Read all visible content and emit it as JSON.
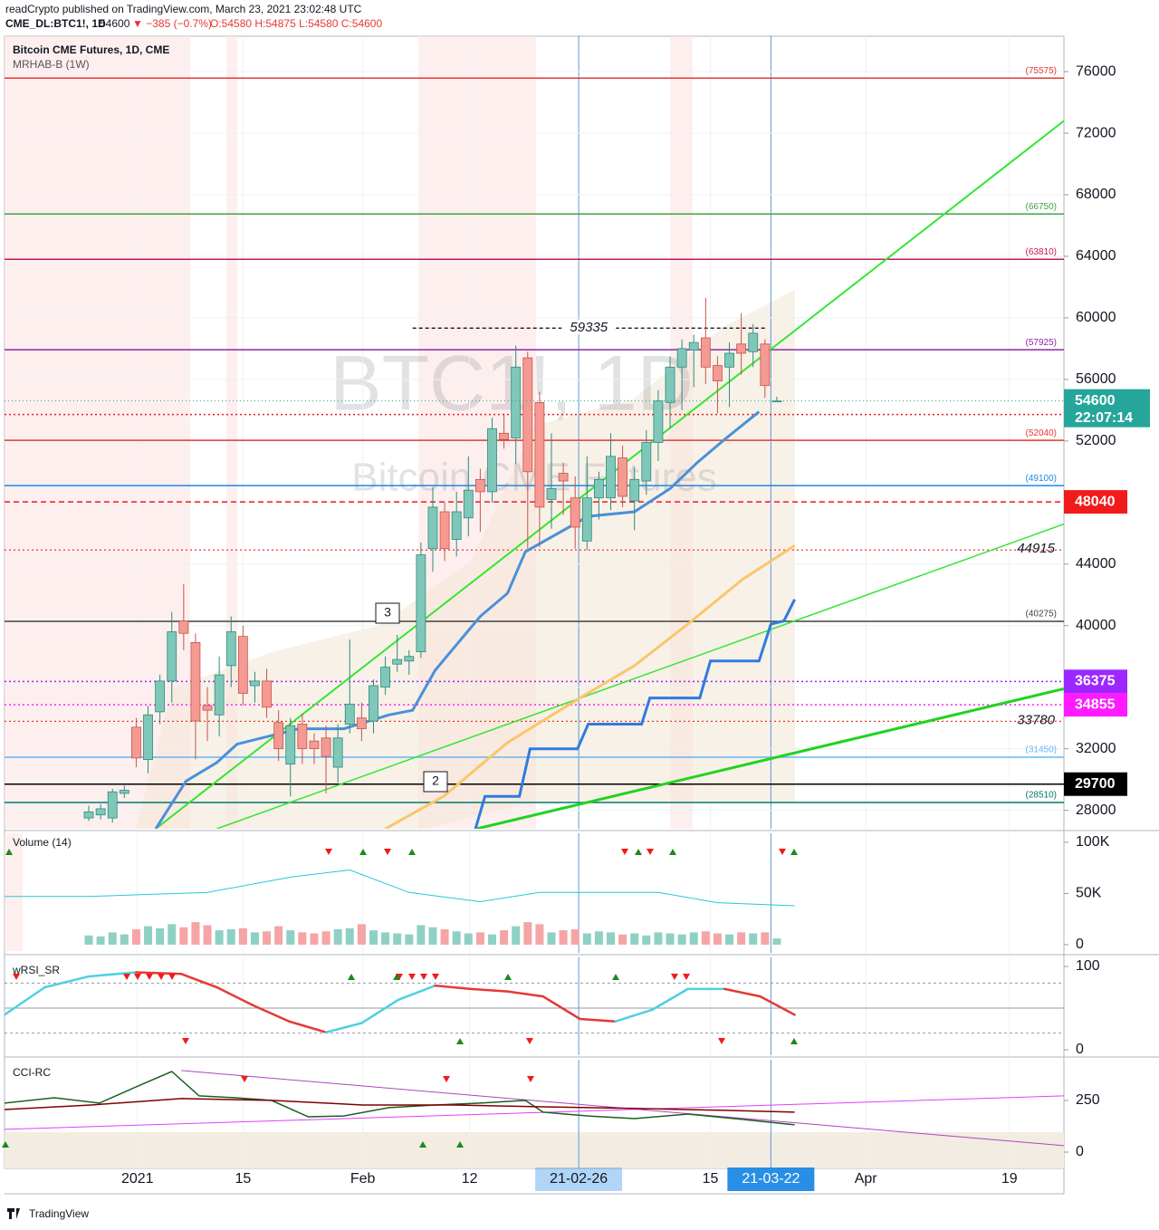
{
  "header": {
    "publisher": "readCrypto published on TradingView.com, March 23, 2021 23:02:48 UTC",
    "symbol": "CME_DL:BTC1!, 1D",
    "last": "54600",
    "change": "▼ −385 (−0.7%)",
    "ohlc": "O:54580 H:54875 L:54580 C:54600"
  },
  "footer": {
    "brand": "TradingView"
  },
  "chart_data": [
    {
      "type": "candlestick",
      "title": "Bitcoin CME Futures, 1D, CME",
      "subtitle": "MRHAB-B (1W)",
      "watermark": [
        "BTC1!, 1D",
        "Bitcoin CME Futures"
      ],
      "up_color": "#7fc8b9",
      "down_color": "#f49a93",
      "open": [
        27500,
        27700,
        27500,
        29100,
        33400,
        31300,
        34400,
        36400,
        40300,
        38900,
        34800,
        34200,
        37400,
        39300,
        36100,
        36400,
        33700,
        31000,
        33600,
        32500,
        32700,
        30800,
        33600,
        34000,
        33800,
        36000,
        37500,
        37700,
        38300,
        45000,
        47400,
        45600,
        47000,
        49500,
        48700,
        52500,
        52200,
        57400,
        54500,
        48200,
        49900,
        48300,
        45500,
        48300,
        48300,
        50900,
        48100,
        49400,
        51900,
        54500,
        56800,
        57900,
        58700,
        56900,
        56800,
        58300,
        57800,
        58300,
        54580
      ],
      "high": [
        28300,
        28400,
        29400,
        29600,
        34000,
        34800,
        36800,
        40900,
        42700,
        39500,
        36000,
        38000,
        40600,
        40000,
        37000,
        37200,
        34500,
        34000,
        34300,
        33000,
        33500,
        33600,
        39100,
        35000,
        36500,
        38000,
        39400,
        38400,
        45400,
        49000,
        48000,
        48700,
        51000,
        50200,
        53500,
        53800,
        58200,
        57800,
        55200,
        52500,
        50600,
        49700,
        51000,
        50000,
        52500,
        51700,
        50300,
        52700,
        55300,
        57500,
        58600,
        58900,
        61300,
        57500,
        58400,
        60300,
        59600,
        58600,
        54875
      ],
      "low": [
        27300,
        27400,
        27200,
        28800,
        30800,
        30400,
        33600,
        35000,
        38400,
        31300,
        32500,
        32800,
        36000,
        34800,
        35000,
        34000,
        31200,
        28900,
        31000,
        31000,
        29100,
        29800,
        33000,
        32500,
        33000,
        35500,
        37000,
        36800,
        37900,
        43500,
        44200,
        44500,
        45800,
        46100,
        48000,
        51500,
        50500,
        45000,
        45100,
        46300,
        47200,
        45000,
        44900,
        46900,
        47500,
        47700,
        46200,
        48500,
        50700,
        52800,
        54000,
        55500,
        55700,
        53800,
        54200,
        56300,
        56800,
        54800,
        54580
      ],
      "close": [
        27900,
        28100,
        29200,
        29300,
        31400,
        34200,
        36400,
        39600,
        39500,
        33800,
        34500,
        36800,
        39600,
        35600,
        36400,
        34700,
        32000,
        33500,
        32000,
        32000,
        31500,
        32700,
        34900,
        33300,
        36100,
        37300,
        37800,
        38000,
        44600,
        47700,
        45000,
        47400,
        48800,
        48700,
        52800,
        52100,
        56800,
        50000,
        47700,
        48900,
        49400,
        46400,
        48300,
        49500,
        51000,
        48400,
        49500,
        51900,
        54600,
        56800,
        58000,
        58400,
        56800,
        55900,
        57700,
        57700,
        59000,
        55600,
        54600
      ],
      "xlim": [
        -7.1,
        82.2
      ],
      "xticks": [
        {
          "value": 4.1,
          "label": "2021"
        },
        {
          "value": 13,
          "label": "15"
        },
        {
          "value": 23.1,
          "label": "Feb"
        },
        {
          "value": 32.1,
          "label": "12"
        },
        {
          "value": 41.3,
          "label": "21-02-26",
          "highlight": true
        },
        {
          "value": 52.4,
          "label": "15"
        },
        {
          "value": 57.5,
          "label": "21-03-22",
          "highlight": true
        },
        {
          "value": 65.5,
          "label": "Apr"
        },
        {
          "value": 77.6,
          "label": "19"
        }
      ],
      "ylim": [
        26800,
        78300
      ],
      "yticks": [
        28000,
        32000,
        36000,
        40000,
        44000,
        48000,
        52000,
        56000,
        60000,
        64000,
        68000,
        72000,
        76000
      ],
      "grid": true,
      "levels": [
        {
          "value": 75575,
          "label": "(75575)",
          "color": "#e53935"
        },
        {
          "value": 66750,
          "label": "(66750)",
          "color": "#43a047"
        },
        {
          "value": 63810,
          "label": "(63810)",
          "color": "#c2185b"
        },
        {
          "value": 57925,
          "label": "(57925)",
          "color": "#8e24aa"
        },
        {
          "value": 52040,
          "label": "(52040)",
          "color": "#e53935"
        },
        {
          "value": 49100,
          "label": "(49100)",
          "color": "#1e88e5"
        },
        {
          "value": 40275,
          "label": "(40275)",
          "color": "#424242"
        },
        {
          "value": 31450,
          "label": "(31450)",
          "color": "#64b5f6"
        },
        {
          "value": 28510,
          "label": "(28510)",
          "color": "#00796b"
        }
      ],
      "price_marks": [
        {
          "value": 53720,
          "color": "#f21a1a",
          "dash": "2 3"
        },
        {
          "value": 48040,
          "color": "#f21a1a",
          "dash": "6 4"
        },
        {
          "value": 36375,
          "color": "#9c27ff",
          "dash": "2 3"
        },
        {
          "value": 34855,
          "color": "#ff1aff",
          "dash": "2 3"
        },
        {
          "value": 29700,
          "color": "#000000",
          "dash": "none"
        }
      ],
      "text_levels": [
        {
          "value": 59335,
          "color": "#000000",
          "dash": "4 3",
          "x": [
            27.3,
            57
          ]
        },
        {
          "value": 44915,
          "color": "#e53935",
          "dash": "2 3"
        },
        {
          "value": 33780,
          "color": "#e53935",
          "dash": "2 3"
        }
      ],
      "last_price": {
        "value": 54600,
        "countdown": "22:07:14",
        "color": "#26a69a"
      },
      "annotations": [
        "3",
        "2"
      ],
      "lines": [
        {
          "color": "#33e633",
          "width": 2,
          "x": [
            5.65,
            82.2
          ],
          "values": [
            26800,
            72800
          ]
        },
        {
          "color": "#33e633",
          "width": 1.5,
          "x": [
            10.8,
            82.2
          ],
          "values": [
            26800,
            46600
          ]
        },
        {
          "color": "#1ed41e",
          "width": 3,
          "x": [
            32.7,
            82.2
          ],
          "values": [
            26800,
            35900
          ]
        },
        {
          "color": "#f9c66b",
          "width": 3,
          "x": [
            25,
            29.9,
            35.3,
            41.4,
            46,
            50.5,
            55.1,
            59.5
          ],
          "values": [
            26800,
            28900,
            32400,
            35300,
            37400,
            40100,
            43000,
            45200
          ]
        },
        {
          "color": "#4a90d9",
          "width": 3,
          "x": [
            5.65,
            8.2,
            10.8,
            12.5,
            17.7,
            21.5,
            25.3,
            27.3,
            29.2,
            33,
            35.3,
            36.8,
            39.1,
            42.1,
            46,
            49,
            51.3,
            53.6,
            56.5
          ],
          "values": [
            26800,
            29900,
            31100,
            32300,
            33300,
            33300,
            34200,
            34500,
            37100,
            40600,
            42100,
            44800,
            45800,
            47100,
            47400,
            48900,
            50600,
            52100,
            53900
          ]
        },
        {
          "color": "#2f7be0",
          "width": 3,
          "x": [
            32.6,
            33.4,
            36.3,
            37.2,
            41.2,
            42.1,
            46.6,
            47.3,
            51.5,
            52.4,
            56.5,
            57.5,
            58.6,
            59.5
          ],
          "values": [
            26800,
            28900,
            28900,
            32000,
            32000,
            33600,
            33600,
            35300,
            35300,
            37700,
            37700,
            40100,
            40300,
            41700
          ]
        }
      ]
    },
    {
      "type": "bar",
      "title": "Volume (14)",
      "up_color": "#8fd0c4",
      "down_color": "#f5a5a5",
      "values": [
        9000,
        8000,
        12000,
        10000,
        15000,
        18000,
        16000,
        20000,
        17000,
        22000,
        19000,
        14000,
        15000,
        16000,
        12000,
        13000,
        18000,
        14000,
        12000,
        11000,
        13000,
        15000,
        16000,
        20000,
        14000,
        12000,
        11000,
        10000,
        19000,
        17000,
        15000,
        13000,
        11000,
        12000,
        10000,
        14000,
        18000,
        22000,
        20000,
        12000,
        14000,
        15000,
        11000,
        13000,
        12000,
        10000,
        11000,
        9000,
        12000,
        11000,
        10000,
        12000,
        13000,
        11000,
        10000,
        12000,
        11000,
        12000,
        6000
      ],
      "ylim": [
        -8000,
        108800
      ],
      "yticks": [
        {
          "value": 100000,
          "label": "100K"
        },
        {
          "value": 50000,
          "label": "50K"
        },
        0
      ],
      "lines": [
        {
          "color": "#26c6da",
          "width": 1,
          "x": [
            -7.1,
            0,
            10,
            17,
            22,
            27,
            33,
            38,
            43,
            48,
            53,
            59.5
          ],
          "values": [
            47000,
            47000,
            51000,
            66000,
            73000,
            51000,
            42000,
            51000,
            51000,
            51000,
            41000,
            38000
          ]
        }
      ]
    },
    {
      "type": "line",
      "title": "wRSI_SR",
      "rising_color": "#4dd0e1",
      "falling_color": "#e53935",
      "ylim": [
        -6.5,
        110.9
      ],
      "yticks": [
        100,
        0
      ],
      "levels": [
        80,
        50,
        20
      ],
      "x": [
        -7.1,
        -3.7,
        0,
        4,
        7.8,
        10.8,
        13.9,
        16.9,
        20,
        23,
        26.1,
        29.2,
        32.2,
        35.3,
        38.3,
        41.4,
        44.4,
        47.5,
        50.5,
        53.6,
        56.6,
        59.5
      ],
      "values": [
        42,
        75,
        88,
        93,
        91,
        75,
        53,
        34,
        21,
        32,
        60,
        77,
        73,
        70,
        64,
        37,
        34,
        48,
        73,
        73,
        64,
        42
      ]
    },
    {
      "type": "line",
      "title": "CCI-RC",
      "ylim": [
        -79,
        447
      ],
      "yticks": [
        250,
        0
      ],
      "series": [
        {
          "color": "#ab47bc",
          "width": 1,
          "x": [
            7.8,
            82.2
          ],
          "values": [
            395,
            31
          ]
        },
        {
          "color": "#e040fb",
          "width": 1,
          "x": [
            -7.1,
            82.2
          ],
          "values": [
            110,
            272
          ]
        },
        {
          "color": "#1b5e20",
          "width": 1.5,
          "x": [
            -7.1,
            -2.9,
            0.9,
            4,
            7,
            9.3,
            12.4,
            15.4,
            18.5,
            21.5,
            25.3,
            29.2,
            33,
            36.8,
            38.3,
            42.1,
            46,
            50.5,
            55.1,
            59.5
          ],
          "values": [
            237,
            263,
            237,
            316,
            390,
            272,
            263,
            250,
            171,
            175,
            215,
            228,
            237,
            250,
            193,
            175,
            162,
            184,
            158,
            132
          ]
        },
        {
          "color": "#7f0000",
          "width": 1.5,
          "x": [
            -7.1,
            0.2,
            7.8,
            15.4,
            23.1,
            30.7,
            38.3,
            46,
            53.6,
            59.5
          ],
          "values": [
            206,
            228,
            259,
            250,
            228,
            228,
            219,
            211,
            202,
            193
          ]
        }
      ]
    }
  ]
}
